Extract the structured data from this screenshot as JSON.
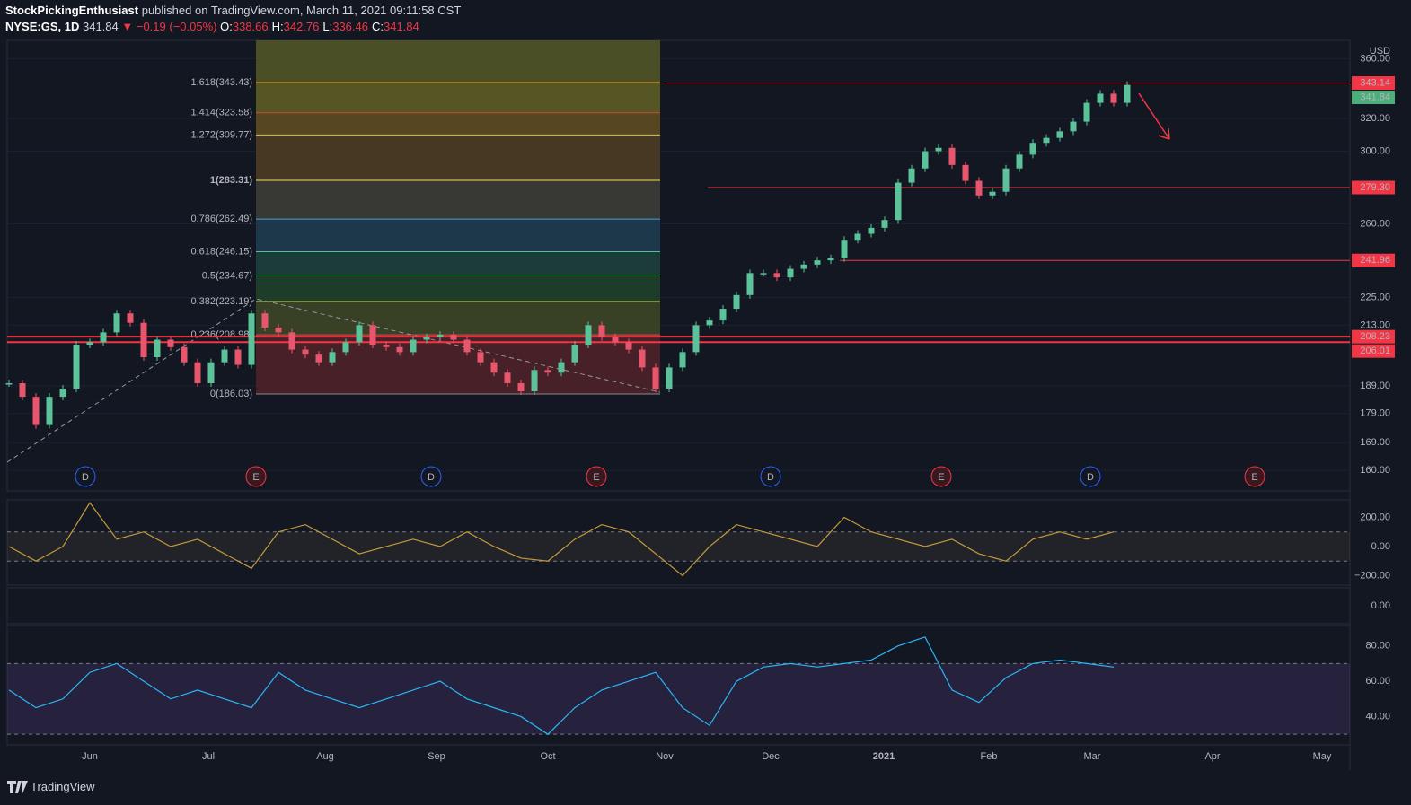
{
  "header": {
    "author": "StockPickingEnthusiast",
    "published": "published on TradingView.com, March 11, 2021 09:11:58 CST",
    "symbol": "NYSE:GS, 1D",
    "last": "341.84",
    "change": "▼ −0.19 (−0.05%)",
    "ohlc": [
      {
        "key": "O:",
        "val": "338.66"
      },
      {
        "key": "H:",
        "val": "342.76"
      },
      {
        "key": "L:",
        "val": "336.46"
      },
      {
        "key": "C:",
        "val": "341.84"
      }
    ]
  },
  "price": {
    "currency": "USD",
    "log": true,
    "ylim": [
      153.7,
      373.2
    ],
    "yticks": [
      {
        "value": 360,
        "label": "360.00"
      },
      {
        "value": 320,
        "label": "320.00"
      },
      {
        "value": 300,
        "label": "300.00"
      },
      {
        "value": 260,
        "label": "260.00"
      },
      {
        "value": 225,
        "label": "225.00"
      },
      {
        "value": 213,
        "label": "213.00"
      },
      {
        "value": 189,
        "label": "189.00"
      },
      {
        "value": 179,
        "label": "179.00"
      },
      {
        "value": 169,
        "label": "169.00"
      },
      {
        "value": 160,
        "label": "160.00"
      }
    ],
    "up_color": "#5cc29a",
    "down_color": "#e8566e",
    "closes": [
      190,
      185,
      175,
      185,
      188,
      205,
      206,
      210,
      218,
      214,
      200,
      207,
      204,
      198,
      190,
      198,
      203,
      197,
      218,
      212,
      210,
      203,
      201,
      198,
      202,
      206,
      213,
      205,
      204,
      202,
      207,
      208,
      209,
      207,
      202,
      198,
      194,
      190,
      187,
      195,
      194,
      198,
      205,
      213,
      208,
      206,
      203,
      196,
      188,
      196,
      202,
      213,
      215,
      220,
      226,
      236,
      236,
      234,
      238,
      240,
      242,
      243,
      252,
      255,
      258,
      262,
      282,
      290,
      300,
      302,
      292,
      283,
      275,
      277,
      290,
      298,
      305,
      308,
      312,
      318,
      330,
      336,
      330,
      341.84
    ],
    "fib": [
      {
        "label": "1.618(343.43)",
        "price": 343.43,
        "color": "#f0a030",
        "zone": "#5a5a26"
      },
      {
        "label": "1.414(323.58)",
        "price": 323.58,
        "color": "#d0453f",
        "zone": "#5a4a22"
      },
      {
        "label": "1.272(309.77)",
        "price": 309.77,
        "color": "#c8d040",
        "zone": "#4a3a24"
      },
      {
        "label": "1(283.31)",
        "price": 283.31,
        "color": "#f5e050",
        "zone": "#3a3a36"
      },
      {
        "label": "0.786(262.49)",
        "price": 262.49,
        "color": "#4a9fd8",
        "zone": "#1e3a4e"
      },
      {
        "label": "0.618(246.15)",
        "price": 246.15,
        "color": "#50c0a0",
        "zone": "#1c3e3c"
      },
      {
        "label": "0.5(234.67)",
        "price": 234.67,
        "color": "#40c040",
        "zone": "#1e3e2a"
      },
      {
        "label": "0.382(223.19)",
        "price": 223.19,
        "color": "#b0c040",
        "zone": "#3a4226"
      },
      {
        "label": "0.236(208.98)",
        "price": 208.98,
        "color": "#e05050",
        "zone": "#4a2228"
      },
      {
        "label": "0(186.03)",
        "price": 186.03,
        "color": "#888888",
        "zone": null
      }
    ],
    "lines": [
      {
        "price": 343.14,
        "start": 738
      },
      {
        "price": 279.3,
        "start": 788
      },
      {
        "price": 241.96,
        "start": 935
      },
      {
        "price": 208.23,
        "start": 8
      },
      {
        "price": 206.01,
        "start": 8
      }
    ],
    "badges": [
      {
        "value": 343.14,
        "label": "343.14",
        "color": "#f23645"
      },
      {
        "value": 341.84,
        "label": "341.84",
        "color": "#4caf7a"
      },
      {
        "value": 279.3,
        "label": "279.30",
        "color": "#f23645"
      },
      {
        "value": 241.96,
        "label": "241.96",
        "color": "#f23645"
      },
      {
        "value": 208.23,
        "label": "208.23",
        "color": "#f23645"
      },
      {
        "value": 206.01,
        "label": "206.01",
        "color": "#f23645"
      }
    ],
    "events": [
      "D",
      "E",
      "D",
      "E",
      "D",
      "E",
      "D",
      "E"
    ]
  },
  "months": [
    "Jun",
    "Jul",
    "Aug",
    "Sep",
    "Oct",
    "Nov",
    "Dec",
    "2021",
    "Feb",
    "Mar",
    "Apr",
    "May"
  ],
  "cci": {
    "ylim": [
      -265,
      320
    ],
    "yticks": [
      {
        "value": 200,
        "label": "200.00"
      },
      {
        "value": 0,
        "label": "0.00"
      },
      {
        "value": -200,
        "label": "−200.00"
      }
    ],
    "bands": [
      -100,
      100
    ],
    "values": [
      0,
      -100,
      0,
      300,
      50,
      100,
      0,
      50,
      -50,
      -150,
      100,
      150,
      50,
      -50,
      0,
      50,
      0,
      100,
      0,
      -80,
      -100,
      50,
      150,
      100,
      -50,
      -200,
      0,
      150,
      100,
      50,
      0,
      200,
      100,
      50,
      0,
      50,
      -50,
      -100,
      50,
      100,
      50,
      100
    ]
  },
  "empty_pane": {
    "yticks": [
      {
        "value": 0,
        "label": "0.00"
      }
    ]
  },
  "rsi": {
    "ylim": [
      24,
      91.5
    ],
    "yticks": [
      {
        "value": 80,
        "label": "80.00"
      },
      {
        "value": 60,
        "label": "60.00"
      },
      {
        "value": 40,
        "label": "40.00"
      }
    ],
    "bands": [
      30,
      70
    ],
    "values": [
      55,
      45,
      50,
      65,
      70,
      60,
      50,
      55,
      50,
      45,
      65,
      55,
      50,
      45,
      50,
      55,
      60,
      50,
      45,
      40,
      30,
      45,
      55,
      60,
      65,
      45,
      35,
      60,
      68,
      70,
      68,
      70,
      72,
      80,
      85,
      55,
      48,
      62,
      70,
      72,
      70,
      68
    ]
  },
  "footer": {
    "brand": "TradingView"
  }
}
